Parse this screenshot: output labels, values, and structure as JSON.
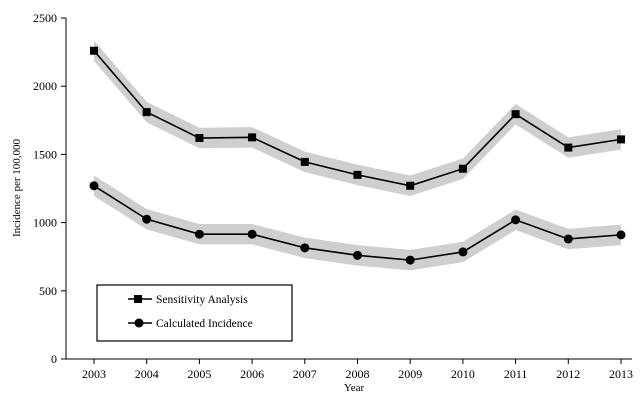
{
  "chart_data": {
    "type": "line",
    "title": "",
    "xlabel": "Year",
    "ylabel": "Incidence per 100,000",
    "categories": [
      "2003",
      "2004",
      "2005",
      "2006",
      "2007",
      "2008",
      "2009",
      "2010",
      "2011",
      "2012",
      "2013"
    ],
    "ylim": [
      0,
      2500
    ],
    "yticks": [
      "0",
      "500",
      "1000",
      "1500",
      "2000",
      "2500"
    ],
    "grid": false,
    "legend_position": "bottom-left",
    "band_color": "#cfcfcf",
    "line_color": "#000000",
    "series": [
      {
        "name": "Sensitivity Analysis",
        "marker": "square",
        "values": [
          2260,
          1810,
          1620,
          1625,
          1445,
          1350,
          1270,
          1395,
          1795,
          1550,
          1610
        ],
        "band_half_width": 75
      },
      {
        "name": "Calculated Incidence",
        "marker": "circle",
        "values": [
          1270,
          1025,
          915,
          915,
          815,
          760,
          725,
          785,
          1020,
          880,
          910
        ],
        "band_half_width": 75
      }
    ]
  }
}
